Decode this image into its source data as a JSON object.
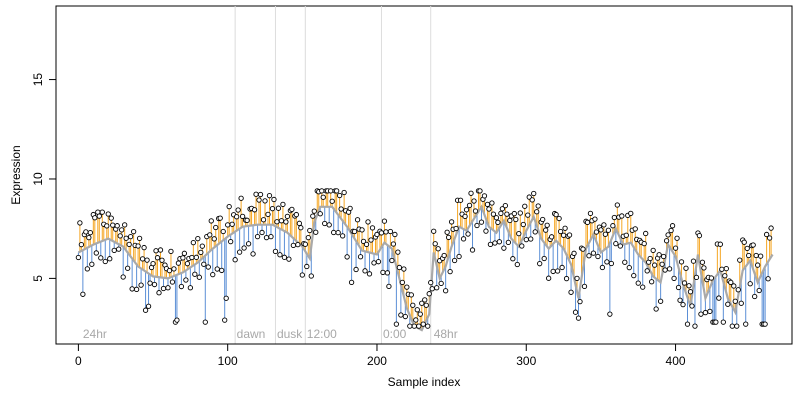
{
  "chart_data": {
    "type": "scatter",
    "xlabel": "Sample index",
    "ylabel": "Expression",
    "xlim": [
      -15,
      478
    ],
    "ylim": [
      1.7,
      18.7
    ],
    "x_ticks": [
      0,
      100,
      200,
      300,
      400
    ],
    "y_ticks": [
      5,
      10,
      15
    ],
    "grid": false,
    "period_labels": [
      {
        "text": "24hr",
        "x": 3
      },
      {
        "text": "dawn",
        "x": 106
      },
      {
        "text": "dusk",
        "x": 133
      },
      {
        "text": "12:00",
        "x": 153
      },
      {
        "text": "0:00",
        "x": 204
      },
      {
        "text": "48hr",
        "x": 238
      }
    ],
    "boundaries": [
      105,
      132,
      152,
      203,
      236
    ],
    "colors": {
      "fit": "#a9a9a9",
      "above": "#f5a623",
      "below": "#5b8fd6",
      "boundary": "#dcdcdc",
      "point": "#000000"
    },
    "knots": [
      [
        0,
        6.3
      ],
      [
        10,
        6.7
      ],
      [
        20,
        7.0
      ],
      [
        30,
        6.6
      ],
      [
        40,
        5.6
      ],
      [
        50,
        5.1
      ],
      [
        60,
        5.0
      ],
      [
        70,
        5.3
      ],
      [
        80,
        5.8
      ],
      [
        90,
        6.5
      ],
      [
        100,
        7.1
      ],
      [
        110,
        7.6
      ],
      [
        120,
        7.7
      ],
      [
        130,
        7.7
      ],
      [
        140,
        7.3
      ],
      [
        150,
        6.6
      ],
      [
        155,
        6.0
      ],
      [
        158,
        7.8
      ],
      [
        162,
        8.6
      ],
      [
        170,
        8.6
      ],
      [
        180,
        7.6
      ],
      [
        190,
        6.4
      ],
      [
        200,
        6.2
      ],
      [
        205,
        6.8
      ],
      [
        210,
        6.5
      ],
      [
        215,
        5.0
      ],
      [
        220,
        3.5
      ],
      [
        225,
        2.6
      ],
      [
        230,
        2.4
      ],
      [
        235,
        3.2
      ],
      [
        238,
        6.3
      ],
      [
        242,
        5.0
      ],
      [
        246,
        5.6
      ],
      [
        250,
        6.6
      ],
      [
        255,
        7.6
      ],
      [
        260,
        7.4
      ],
      [
        265,
        8.0
      ],
      [
        270,
        8.6
      ],
      [
        275,
        7.6
      ],
      [
        280,
        7.3
      ],
      [
        285,
        7.9
      ],
      [
        290,
        7.0
      ],
      [
        295,
        6.6
      ],
      [
        300,
        7.4
      ],
      [
        305,
        8.1
      ],
      [
        310,
        7.0
      ],
      [
        315,
        6.5
      ],
      [
        320,
        6.9
      ],
      [
        325,
        6.5
      ],
      [
        330,
        5.7
      ],
      [
        335,
        4.0
      ],
      [
        340,
        6.5
      ],
      [
        345,
        7.2
      ],
      [
        350,
        6.3
      ],
      [
        355,
        6.6
      ],
      [
        360,
        7.5
      ],
      [
        365,
        6.7
      ],
      [
        370,
        6.8
      ],
      [
        375,
        6.2
      ],
      [
        380,
        5.8
      ],
      [
        385,
        5.1
      ],
      [
        390,
        4.8
      ],
      [
        395,
        6.7
      ],
      [
        400,
        6.1
      ],
      [
        405,
        4.7
      ],
      [
        410,
        3.6
      ],
      [
        415,
        6.2
      ],
      [
        420,
        4.0
      ],
      [
        425,
        4.9
      ],
      [
        430,
        5.4
      ],
      [
        435,
        4.0
      ],
      [
        440,
        3.3
      ],
      [
        445,
        5.4
      ],
      [
        450,
        5.9
      ],
      [
        455,
        4.8
      ],
      [
        460,
        5.6
      ],
      [
        465,
        6.2
      ]
    ],
    "outliers": {
      "3": 4.2,
      "45": 3.4,
      "47": 3.6,
      "65": 2.8,
      "66": 2.9,
      "85": 2.8,
      "98": 2.9,
      "99": 4.0,
      "147": 6.7,
      "153": 5.6,
      "183": 4.8,
      "208": 4.6,
      "213": 2.7,
      "228": 2.6,
      "231": 2.7,
      "335": 3.0,
      "356": 3.2,
      "403": 3.9,
      "408": 2.7,
      "413": 2.6,
      "417": 3.2,
      "425": 2.8,
      "426": 2.8,
      "427": 2.8,
      "432": 2.8,
      "447": 2.7,
      "458": 2.7,
      "459": 2.7,
      "460": 2.7
    }
  }
}
